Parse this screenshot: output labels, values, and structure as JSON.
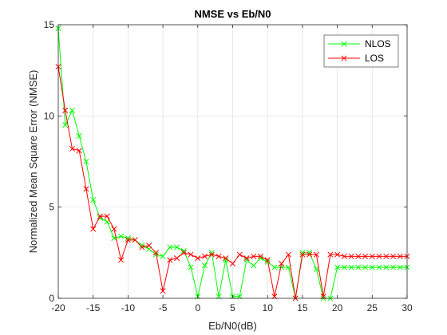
{
  "chart_data": {
    "type": "line",
    "title": "NMSE vs Eb/N0",
    "xlabel": "Eb/N0(dB)",
    "ylabel": "Normalized Mean Square Error (NMSE)",
    "xlim": [
      -20,
      30
    ],
    "ylim": [
      0,
      15
    ],
    "xticks": [
      -20,
      -15,
      -10,
      -5,
      0,
      5,
      10,
      15,
      20,
      25,
      30
    ],
    "yticks": [
      0,
      5,
      10,
      15
    ],
    "xtick_labels": [
      "-20",
      "-15",
      "-10",
      "-5",
      "0",
      "5",
      "10",
      "15",
      "20",
      "25",
      "30"
    ],
    "ytick_labels": [
      "0",
      "5",
      "10",
      "15"
    ],
    "grid": true,
    "legend_position": "top-right",
    "marker": "x",
    "x": [
      -20,
      -19,
      -18,
      -17,
      -16,
      -15,
      -14,
      -13,
      -12,
      -11,
      -10,
      -9,
      -8,
      -7,
      -6,
      -5,
      -4,
      -3,
      -2,
      -1,
      0,
      1,
      2,
      3,
      4,
      5,
      6,
      7,
      8,
      9,
      10,
      11,
      12,
      13,
      14,
      15,
      16,
      17,
      18,
      19,
      20,
      21,
      22,
      23,
      24,
      25,
      26,
      27,
      28,
      29,
      30
    ],
    "series": [
      {
        "name": "NLOS",
        "color": "#00ff00",
        "values": [
          14.8,
          9.5,
          10.3,
          8.9,
          7.5,
          5.4,
          4.4,
          4.2,
          3.3,
          3.4,
          3.3,
          3.2,
          2.9,
          2.7,
          2.4,
          2.3,
          2.8,
          2.8,
          2.6,
          1.7,
          0.1,
          1.8,
          2.5,
          0.1,
          2.1,
          0.1,
          0.1,
          2.1,
          1.8,
          2.2,
          2.0,
          1.7,
          1.7,
          1.7,
          0.0,
          2.5,
          2.5,
          1.6,
          0.0,
          0.0,
          1.7,
          1.7,
          1.7,
          1.7,
          1.7,
          1.7,
          1.7,
          1.7,
          1.7,
          1.7,
          1.7
        ]
      },
      {
        "name": "LOS",
        "color": "#ff0000",
        "values": [
          12.7,
          10.3,
          8.2,
          8.1,
          6.0,
          3.8,
          4.5,
          4.5,
          3.8,
          2.1,
          3.2,
          3.2,
          2.8,
          2.9,
          2.5,
          0.4,
          2.1,
          2.2,
          2.5,
          2.4,
          2.2,
          2.3,
          2.4,
          2.3,
          2.2,
          1.9,
          2.4,
          2.2,
          2.3,
          2.3,
          2.1,
          0.1,
          1.9,
          2.4,
          0.0,
          2.4,
          2.4,
          2.4,
          0.1,
          2.4,
          2.4,
          2.3,
          2.3,
          2.3,
          2.3,
          2.3,
          2.3,
          2.3,
          2.3,
          2.3,
          2.3
        ]
      }
    ]
  }
}
